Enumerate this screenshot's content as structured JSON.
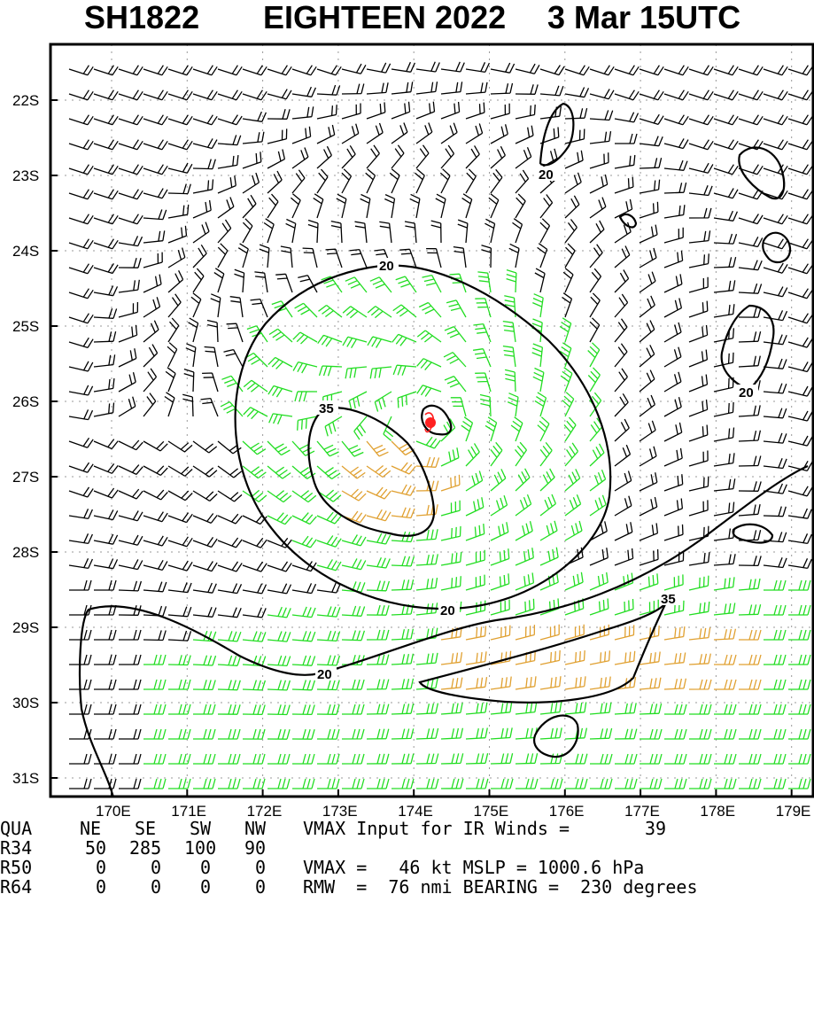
{
  "title": {
    "storm_id": "SH1822",
    "storm_name": "EIGHTEEN 2022",
    "datetime": "3 Mar 15UTC"
  },
  "map": {
    "lat_labels": [
      "22S",
      "23S",
      "24S",
      "25S",
      "26S",
      "27S",
      "28S",
      "29S",
      "30S",
      "31S"
    ],
    "lon_labels": [
      "170E",
      "171E",
      "172E",
      "173E",
      "174E",
      "175E",
      "176E",
      "177E",
      "178E",
      "179E"
    ],
    "contour_labels": [
      "20",
      "20",
      "20",
      "20",
      "35",
      "20",
      "35"
    ],
    "colors": {
      "frame": "#000000",
      "contour": "#000000",
      "barb_calm": "#000000",
      "barb_34kt": "#22dd22",
      "barb_50kt": "#e0a030",
      "center": "#ff2020",
      "grid": "#999999"
    }
  },
  "footer": {
    "headers": [
      "QUA",
      "NE",
      "SE",
      "SW",
      "NW"
    ],
    "rows": [
      {
        "label": "R34",
        "ne": "50",
        "se": "285",
        "sw": "100",
        "nw": "90"
      },
      {
        "label": "R50",
        "ne": "0",
        "se": "0",
        "sw": "0",
        "nw": "0"
      },
      {
        "label": "R64",
        "ne": "0",
        "se": "0",
        "sw": "0",
        "nw": "0"
      }
    ],
    "vmax_input_label": "VMAX Input for IR Winds =",
    "vmax_input_value": "39",
    "vmax_line": "VMAX =   46 kt MSLP = 1000.6 hPa",
    "rmw_line": "RMW  =  76 nmi BEARING =  230 degrees"
  }
}
